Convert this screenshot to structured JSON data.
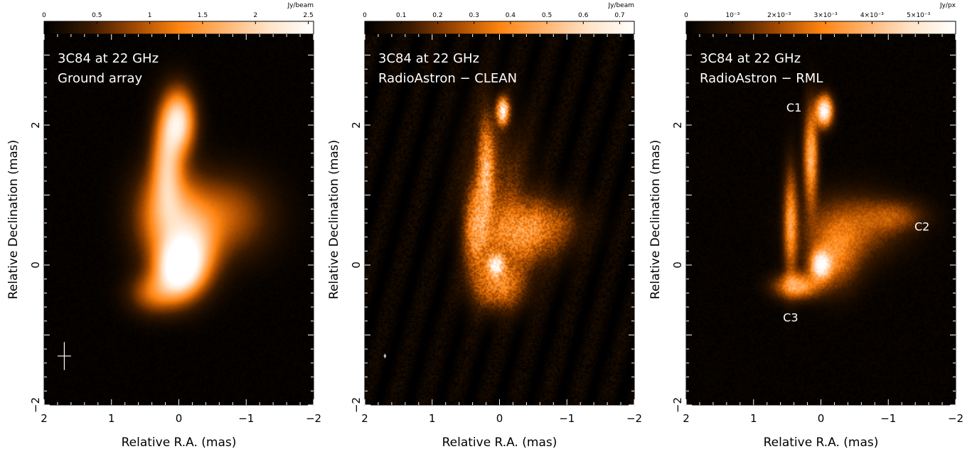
{
  "chart_data": [
    {
      "type": "heatmap",
      "title_lines": [
        "3C84 at 22 GHz",
        "Ground array"
      ],
      "xlabel": "Relative R.A. (mas)",
      "ylabel": "Relative Declination (mas)",
      "xlim": [
        2,
        -2
      ],
      "ylim": [
        -2,
        3.3
      ],
      "xticks": [
        2,
        1,
        0,
        -1,
        -2
      ],
      "xtick_labels": [
        "2",
        "1",
        "0",
        "−1",
        "−2"
      ],
      "yticks": [
        -2,
        0,
        2
      ],
      "ytick_labels": [
        "−2",
        "0",
        "2"
      ],
      "colorbar": {
        "unit": "Jy/beam",
        "range": [
          0,
          2.55
        ],
        "ticks": [
          0,
          0.5,
          1,
          1.5,
          2,
          2.5
        ],
        "tick_labels": [
          "0",
          "0.5",
          "1",
          "1.5",
          "2",
          "2.5"
        ]
      },
      "beam": {
        "ra": 1.7,
        "dec": -1.3,
        "major_mas": 0.4,
        "minor_mas": 0.2,
        "pa_deg": 0
      },
      "annotations": []
    },
    {
      "type": "heatmap",
      "title_lines": [
        "3C84 at 22 GHz",
        "RadioAstron − CLEAN"
      ],
      "xlabel": "Relative R.A. (mas)",
      "ylabel": "Relative Declination (mas)",
      "xlim": [
        2,
        -2
      ],
      "ylim": [
        -2,
        3.3
      ],
      "xticks": [
        2,
        1,
        0,
        -1,
        -2
      ],
      "xtick_labels": [
        "2",
        "1",
        "0",
        "−1",
        "−2"
      ],
      "yticks": [
        -2,
        0,
        2
      ],
      "ytick_labels": [
        "−2",
        "0",
        "2"
      ],
      "colorbar": {
        "unit": "Jy/beam",
        "range": [
          0,
          0.74
        ],
        "ticks": [
          0,
          0.1,
          0.2,
          0.3,
          0.4,
          0.5,
          0.6,
          0.7
        ],
        "tick_labels": [
          "0",
          "0.1",
          "0.2",
          "0.3",
          "0.4",
          "0.5",
          "0.6",
          "0.7"
        ]
      },
      "beam": {
        "ra": 1.7,
        "dec": -1.3,
        "major_mas": 0.06,
        "minor_mas": 0.04,
        "pa_deg": 0
      },
      "annotations": []
    },
    {
      "type": "heatmap",
      "title_lines": [
        "3C84 at 22 GHz",
        "RadioAstron − RML"
      ],
      "xlabel": "Relative R.A. (mas)",
      "ylabel": "Relative Declination (mas)",
      "xlim": [
        2,
        -2
      ],
      "ylim": [
        -2,
        3.3
      ],
      "xticks": [
        2,
        1,
        0,
        -1,
        -2
      ],
      "xtick_labels": [
        "2",
        "1",
        "0",
        "−1",
        "−2"
      ],
      "yticks": [
        -2,
        0,
        2
      ],
      "ytick_labels": [
        "−2",
        "0",
        "2"
      ],
      "colorbar": {
        "unit": "Jy/px",
        "range": [
          0,
          0.0058
        ],
        "ticks": [
          0,
          0.001,
          0.002,
          0.003,
          0.004,
          0.005
        ],
        "tick_labels": [
          "0",
          "10⁻³",
          "2×10⁻³",
          "3×10⁻³",
          "4×10⁻³",
          "5×10⁻³"
        ]
      },
      "beam": null,
      "annotations": [
        {
          "text": "C1",
          "ra": 0.4,
          "dec": 2.25
        },
        {
          "text": "C2",
          "ra": -1.5,
          "dec": 0.55
        },
        {
          "text": "C3",
          "ra": 0.45,
          "dec": -0.75
        }
      ]
    }
  ],
  "colormap": [
    "#000000",
    "#3a1a00",
    "#a04800",
    "#ff8410",
    "#ffb470",
    "#ffe4c8",
    "#ffffff"
  ]
}
